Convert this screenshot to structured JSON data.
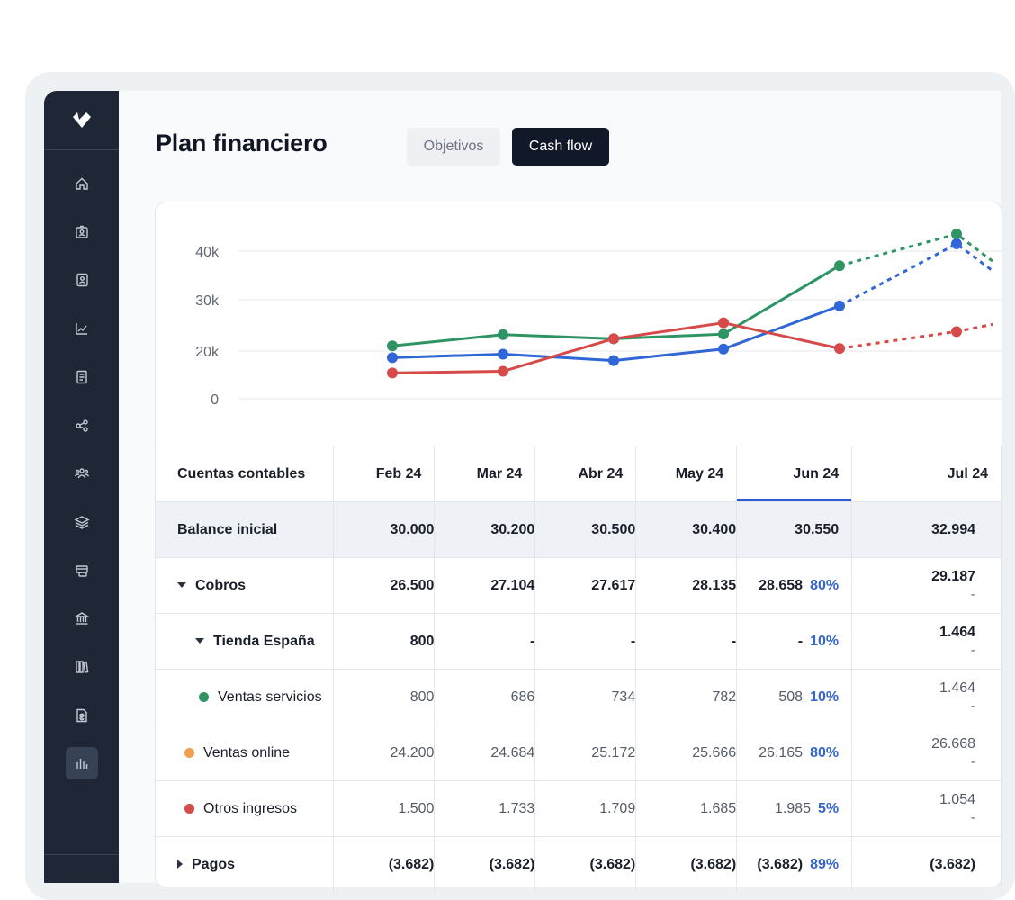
{
  "page": {
    "title": "Plan financiero"
  },
  "tabs": [
    {
      "label": "Objetivos",
      "active": false
    },
    {
      "label": "Cash flow",
      "active": true
    }
  ],
  "sidebar": {
    "items": [
      {
        "icon": "home-icon"
      },
      {
        "icon": "id-card-icon"
      },
      {
        "icon": "contact-book-icon"
      },
      {
        "icon": "trend-chart-icon"
      },
      {
        "icon": "document-icon"
      },
      {
        "icon": "share-nodes-icon"
      },
      {
        "icon": "team-icon"
      },
      {
        "icon": "layers-icon"
      },
      {
        "icon": "card-stack-icon"
      },
      {
        "icon": "bank-icon"
      },
      {
        "icon": "library-icon"
      },
      {
        "icon": "invoice-icon"
      },
      {
        "icon": "bar-chart-icon",
        "active": true
      }
    ]
  },
  "colors": {
    "green": "#2e9464",
    "blue": "#3066d6",
    "red": "#d64a4a",
    "orange": "#f0a050",
    "sidebar": "#1f2737",
    "accent": "#2f5bd3"
  },
  "chart_data": {
    "type": "line",
    "categories": [
      "Feb 24",
      "Mar 24",
      "Abr 24",
      "May 24",
      "Jun 24",
      "Jul 24"
    ],
    "yticks": [
      "0",
      "20k",
      "30k",
      "40k"
    ],
    "ylim": [
      0,
      40000
    ],
    "grid": true,
    "forecast_from_index": 4,
    "series": [
      {
        "color": "#2e9464",
        "values": [
          21000,
          23200,
          22400,
          23300,
          37000,
          43500
        ]
      },
      {
        "color": "#3066d6",
        "values": [
          17200,
          18700,
          16000,
          20400,
          28800,
          41500
        ]
      },
      {
        "color": "#d64a4a",
        "values": [
          10800,
          11500,
          22400,
          25500,
          20500,
          23800
        ]
      }
    ]
  },
  "table": {
    "header_first": "Cuentas contables",
    "columns": [
      "Feb 24",
      "Mar 24",
      "Abr 24",
      "May 24",
      "Jun 24",
      "Jul 24"
    ],
    "selected_column": "Jun 24",
    "rows": [
      {
        "label": "Balance inicial",
        "style": "balance",
        "values": [
          "30.000",
          "30.200",
          "30.500",
          "30.400",
          "30.550",
          "32.994"
        ],
        "jun_pct": "",
        "jul_sub": ""
      },
      {
        "label": "Cobros",
        "style": "bold",
        "caret": "down",
        "indent": 0,
        "values": [
          "26.500",
          "27.104",
          "27.617",
          "28.135",
          "28.658",
          "29.187"
        ],
        "jun_pct": "80%",
        "jul_sub": "-"
      },
      {
        "label": "Tienda España",
        "style": "bold",
        "caret": "down",
        "indent": 1,
        "values": [
          "800",
          "-",
          "-",
          "-",
          "-",
          "1.464"
        ],
        "jun_pct": "10%",
        "jul_sub": "-"
      },
      {
        "label": "Ventas servicios",
        "style": "normal",
        "dot": "#2e9464",
        "indent": 2,
        "values": [
          "800",
          "686",
          "734",
          "782",
          "508",
          "1.464"
        ],
        "jun_pct": "10%",
        "jul_sub": "-"
      },
      {
        "label": "Ventas online",
        "style": "normal",
        "dot": "#f0a050",
        "indent": 1,
        "values": [
          "24.200",
          "24.684",
          "25.172",
          "25.666",
          "26.165",
          "26.668"
        ],
        "jun_pct": "80%",
        "jul_sub": "-"
      },
      {
        "label": "Otros ingresos",
        "style": "normal",
        "dot": "#d64a4a",
        "indent": 1,
        "values": [
          "1.500",
          "1.733",
          "1.709",
          "1.685",
          "1.985",
          "1.054"
        ],
        "jun_pct": "5%",
        "jul_sub": "-"
      },
      {
        "label": "Pagos",
        "style": "bold",
        "caret": "right",
        "indent": 0,
        "values": [
          "(3.682)",
          "(3.682)",
          "(3.682)",
          "(3.682)",
          "(3.682)",
          "(3.682)"
        ],
        "jun_pct": "89%",
        "jul_sub": ""
      }
    ]
  }
}
